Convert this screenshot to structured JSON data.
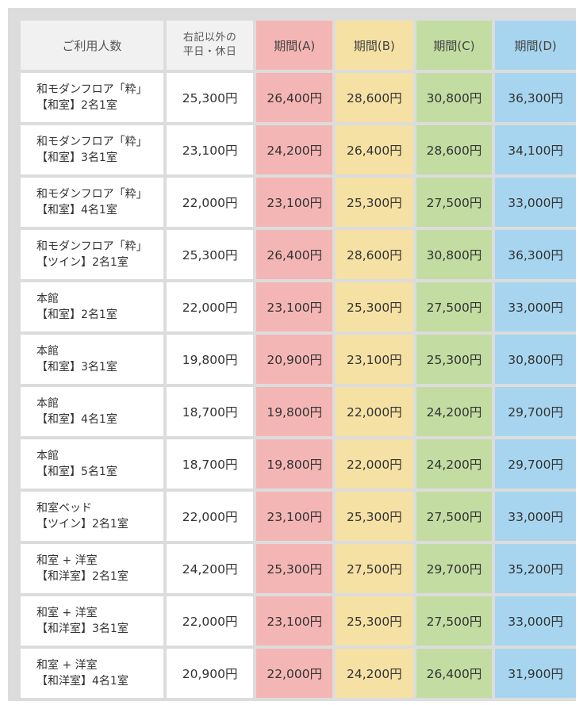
{
  "headers": {
    "room_type": "ご利用人数",
    "standard_line1": "右記以外の",
    "standard_line2": "平日・休日",
    "period_a": "期間(A)",
    "period_b": "期間(B)",
    "period_c": "期間(C)",
    "period_d": "期間(D)"
  },
  "colors": {
    "period_a": "#f4b6b5",
    "period_b": "#f6e1a4",
    "period_c": "#c2dca2",
    "period_d": "#a7d5ef",
    "header_plain": "#f1f1f1",
    "border": "#dcdcdc"
  },
  "rows": [
    {
      "line1": "和モダンフロア「粋」",
      "line2": "【和室】2名1室",
      "standard": "25,300円",
      "a": "26,400円",
      "b": "28,600円",
      "c": "30,800円",
      "d": "36,300円"
    },
    {
      "line1": "和モダンフロア「粋」",
      "line2": "【和室】3名1室",
      "standard": "23,100円",
      "a": "24,200円",
      "b": "26,400円",
      "c": "28,600円",
      "d": "34,100円"
    },
    {
      "line1": "和モダンフロア「粋」",
      "line2": "【和室】4名1室",
      "standard": "22,000円",
      "a": "23,100円",
      "b": "25,300円",
      "c": "27,500円",
      "d": "33,000円"
    },
    {
      "line1": "和モダンフロア「粋」",
      "line2": "【ツイン】2名1室",
      "standard": "25,300円",
      "a": "26,400円",
      "b": "28,600円",
      "c": "30,800円",
      "d": "36,300円"
    },
    {
      "line1": "本館",
      "line2": "【和室】2名1室",
      "standard": "22,000円",
      "a": "23,100円",
      "b": "25,300円",
      "c": "27,500円",
      "d": "33,000円"
    },
    {
      "line1": "本館",
      "line2": "【和室】3名1室",
      "standard": "19,800円",
      "a": "20,900円",
      "b": "23,100円",
      "c": "25,300円",
      "d": "30,800円"
    },
    {
      "line1": "本館",
      "line2": "【和室】4名1室",
      "standard": "18,700円",
      "a": "19,800円",
      "b": "22,000円",
      "c": "24,200円",
      "d": "29,700円"
    },
    {
      "line1": "本館",
      "line2": "【和室】5名1室",
      "standard": "18,700円",
      "a": "19,800円",
      "b": "22,000円",
      "c": "24,200円",
      "d": "29,700円"
    },
    {
      "line1": "和室ベッド",
      "line2": "【ツイン】2名1室",
      "standard": "22,000円",
      "a": "23,100円",
      "b": "25,300円",
      "c": "27,500円",
      "d": "33,000円"
    },
    {
      "line1": "和室 + 洋室",
      "line2": "【和洋室】2名1室",
      "standard": "24,200円",
      "a": "25,300円",
      "b": "27,500円",
      "c": "29,700円",
      "d": "35,200円"
    },
    {
      "line1": "和室 + 洋室",
      "line2": "【和洋室】3名1室",
      "standard": "22,000円",
      "a": "23,100円",
      "b": "25,300円",
      "c": "27,500円",
      "d": "33,000円"
    },
    {
      "line1": "和室 + 洋室",
      "line2": "【和洋室】4名1室",
      "standard": "20,900円",
      "a": "22,000円",
      "b": "24,200円",
      "c": "26,400円",
      "d": "31,900円"
    }
  ]
}
